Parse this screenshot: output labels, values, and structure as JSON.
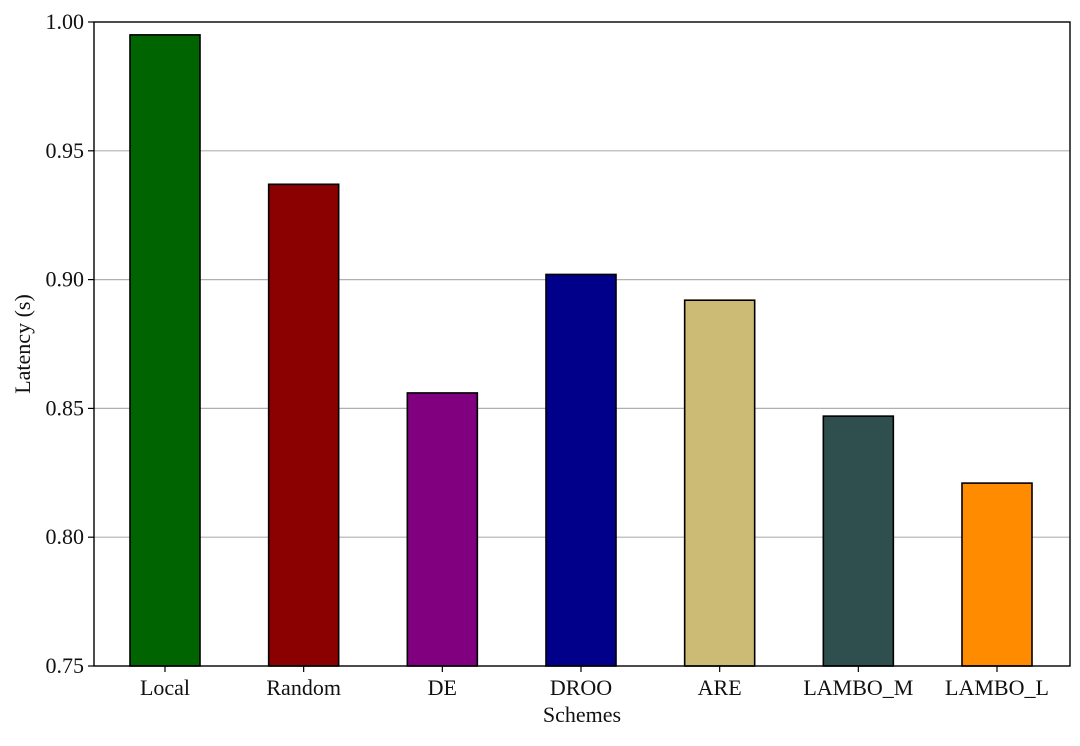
{
  "chart_data": {
    "type": "bar",
    "title": "",
    "xlabel": "Schemes",
    "ylabel": "Latency (s)",
    "ylim": [
      0.75,
      1.0
    ],
    "yticks": [
      "0.75",
      "0.80",
      "0.85",
      "0.90",
      "0.95",
      "1.00"
    ],
    "grid": "horizontal",
    "categories": [
      "Local",
      "Random",
      "DE",
      "DROO",
      "ARE",
      "LAMBO_M",
      "LAMBO_L"
    ],
    "values": [
      0.995,
      0.937,
      0.856,
      0.902,
      0.892,
      0.847,
      0.821
    ],
    "colors": [
      "#006400",
      "#8b0000",
      "#800080",
      "#00008b",
      "#ccbb74",
      "#2f4f4f",
      "#ff8c00"
    ]
  }
}
